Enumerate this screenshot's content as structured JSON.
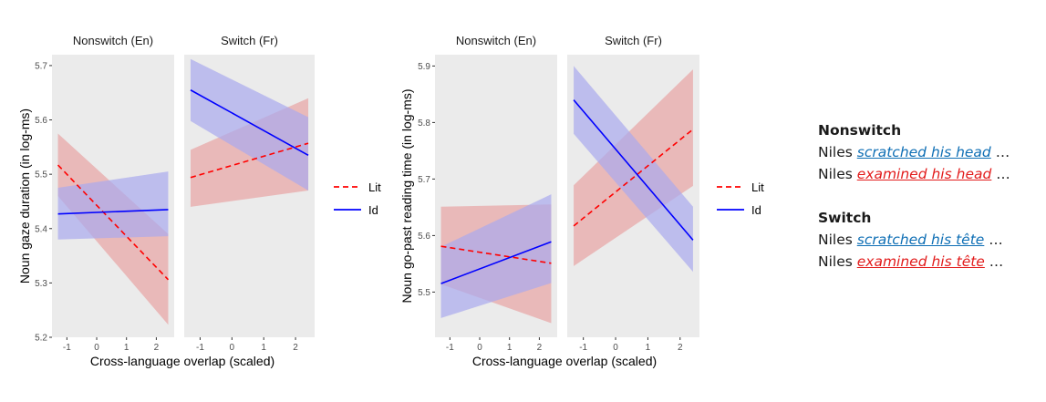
{
  "chart_data": [
    {
      "type": "line",
      "ylabel": "Noun gaze duration (in log-ms)",
      "xlabel": "Cross-language overlap (scaled)",
      "ylim": [
        5.2,
        5.72
      ],
      "yticks": [
        5.2,
        5.3,
        5.4,
        5.5,
        5.6,
        5.7
      ],
      "xlim": [
        -1.5,
        2.6
      ],
      "xticks": [
        -1,
        0,
        1,
        2
      ],
      "facets": [
        {
          "label": "Nonswitch (En)",
          "series": [
            {
              "name": "Lit",
              "x": [
                -1.3,
                2.4
              ],
              "y": [
                5.517,
                5.306
              ],
              "lower": [
                5.46,
                5.223
              ],
              "upper": [
                5.575,
                5.39
              ]
            },
            {
              "name": "Id",
              "x": [
                -1.3,
                2.4
              ],
              "y": [
                5.427,
                5.435
              ],
              "lower": [
                5.38,
                5.386
              ],
              "upper": [
                5.475,
                5.505
              ]
            }
          ]
        },
        {
          "label": "Switch (Fr)",
          "series": [
            {
              "name": "Lit",
              "x": [
                -1.3,
                2.4
              ],
              "y": [
                5.494,
                5.557
              ],
              "lower": [
                5.44,
                5.47
              ],
              "upper": [
                5.545,
                5.64
              ]
            },
            {
              "name": "Id",
              "x": [
                -1.3,
                2.4
              ],
              "y": [
                5.655,
                5.535
              ],
              "lower": [
                5.598,
                5.47
              ],
              "upper": [
                5.712,
                5.605
              ]
            }
          ]
        }
      ],
      "legend": [
        "Lit",
        "Id"
      ],
      "legend_position": "right",
      "grid": false
    },
    {
      "type": "line",
      "ylabel": "Noun go-past reading time (in log-ms)",
      "xlabel": "Cross-language overlap (scaled)",
      "ylim": [
        5.42,
        5.92
      ],
      "yticks": [
        5.5,
        5.6,
        5.7,
        5.8,
        5.9
      ],
      "xlim": [
        -1.5,
        2.6
      ],
      "xticks": [
        -1,
        0,
        1,
        2
      ],
      "facets": [
        {
          "label": "Nonswitch (En)",
          "series": [
            {
              "name": "Lit",
              "x": [
                -1.3,
                2.4
              ],
              "y": [
                5.581,
                5.551
              ],
              "lower": [
                5.514,
                5.445
              ],
              "upper": [
                5.651,
                5.655
              ]
            },
            {
              "name": "Id",
              "x": [
                -1.3,
                2.4
              ],
              "y": [
                5.515,
                5.589
              ],
              "lower": [
                5.454,
                5.516
              ],
              "upper": [
                5.58,
                5.673
              ]
            }
          ]
        },
        {
          "label": "Switch (Fr)",
          "series": [
            {
              "name": "Lit",
              "x": [
                -1.3,
                2.4
              ],
              "y": [
                5.617,
                5.788
              ],
              "lower": [
                5.546,
                5.688
              ],
              "upper": [
                5.689,
                5.894
              ]
            },
            {
              "name": "Id",
              "x": [
                -1.3,
                2.4
              ],
              "y": [
                5.84,
                5.592
              ],
              "lower": [
                5.78,
                5.536
              ],
              "upper": [
                5.9,
                5.651
              ]
            }
          ]
        }
      ],
      "legend": [
        "Lit",
        "Id"
      ],
      "legend_position": "right",
      "grid": false
    }
  ],
  "colors": {
    "Lit": "#ff0000",
    "Id": "#0000ff",
    "Lit_ribbon": "#e8a4a4",
    "Id_ribbon": "#a9a9ee",
    "panel": "#ebebeb",
    "phrase_id": "#0f6fb5",
    "phrase_lit": "#e21c1c"
  },
  "examples": {
    "nonswitch": {
      "heading": "Nonswitch",
      "line1": {
        "prefix": "Niles ",
        "phrase": "scratched his head",
        "suffix": " …"
      },
      "line2": {
        "prefix": "Niles ",
        "phrase": "examined his head",
        "suffix": " …"
      }
    },
    "switch": {
      "heading": "Switch",
      "line1": {
        "prefix": "Niles ",
        "phrase": "scratched his tête",
        "suffix": " …"
      },
      "line2": {
        "prefix": "Niles ",
        "phrase": "examined his tête",
        "suffix": " …"
      }
    }
  }
}
